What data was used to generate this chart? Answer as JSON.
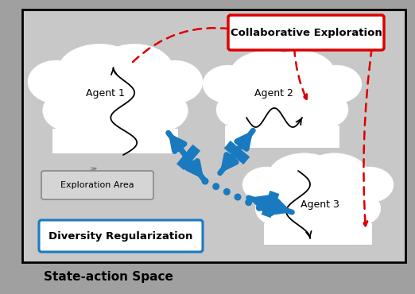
{
  "bg_color": "#c8c8c8",
  "cloud_color": "#ffffff",
  "arrow_color": "#1a7abf",
  "red_dashed_color": "#dd0000",
  "title_text": "State-action Space",
  "collab_text": "Collaborative Exploration",
  "diversity_text": "Diversity Regularization",
  "exploration_text": "Exploration Area",
  "agent1_text": "Agent 1",
  "agent2_text": "Agent 2",
  "agent3_text": "Agent 3",
  "figsize": [
    5.22,
    3.7
  ],
  "dpi": 100
}
